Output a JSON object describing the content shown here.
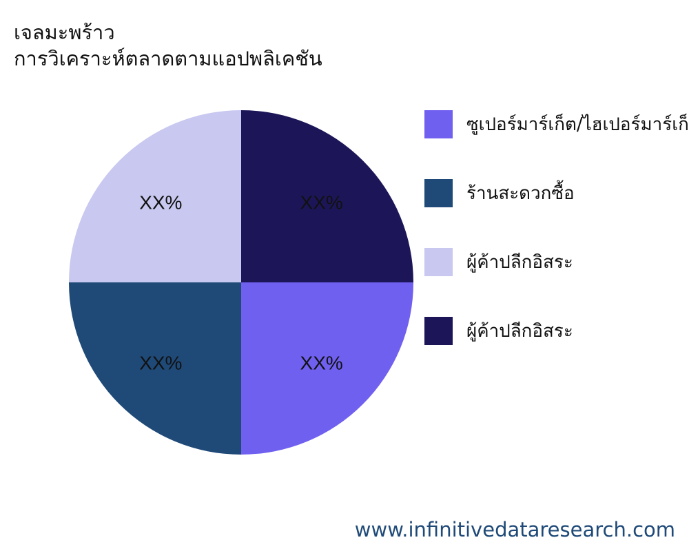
{
  "chart_data": {
    "type": "pie",
    "title": [
      "เจลมะพร้าว",
      "การวิเคราะห์ตลาดตามแอปพลิเคชัน"
    ],
    "slices": [
      {
        "name": "ซูเปอร์มาร์เก็ต/ไฮเปอร์มาร์เก็ต",
        "value": 25,
        "label": "XX%",
        "color": "#7060f0"
      },
      {
        "name": "ร้านสะดวกซื้อ",
        "value": 25,
        "label": "XX%",
        "color": "#1f4a78"
      },
      {
        "name": "ผู้ค้าปลีกอิสระ",
        "value": 25,
        "label": "XX%",
        "color": "#c8c8f0"
      },
      {
        "name": "ผู้ค้าปลีกอิสระ",
        "value": 25,
        "label": "XX%",
        "color": "#1c1658"
      }
    ],
    "legend_position": "right"
  },
  "footer": "www.infinitivedataresearch.com"
}
